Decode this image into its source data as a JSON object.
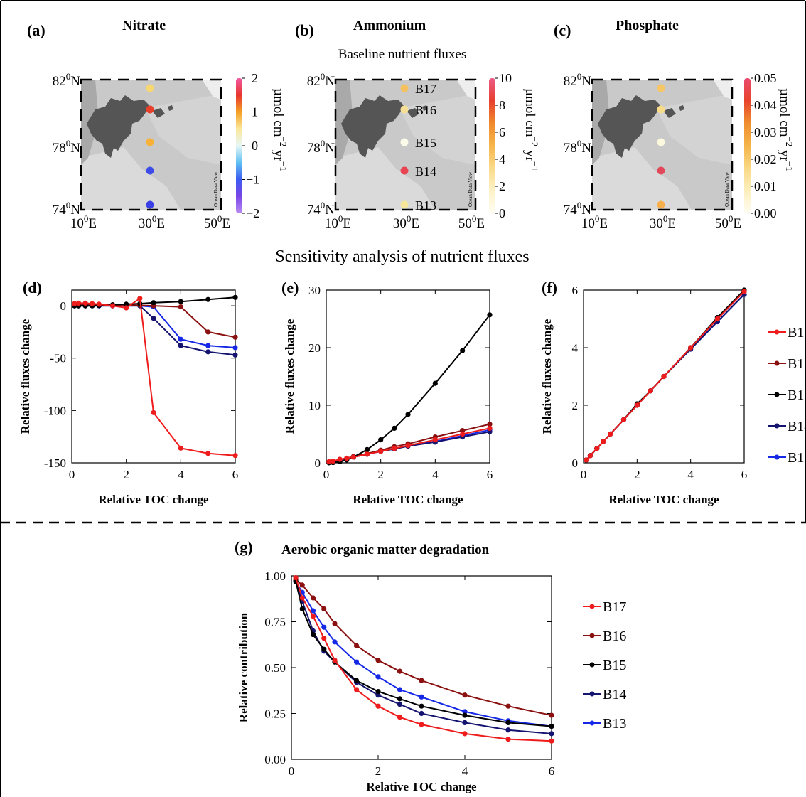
{
  "panels": {
    "a": {
      "tag": "(a)",
      "title": "Nitrate"
    },
    "b": {
      "tag": "(b)",
      "title": "Ammonium"
    },
    "c": {
      "tag": "(c)",
      "title": "Phosphate"
    },
    "d": {
      "tag": "(d)"
    },
    "e": {
      "tag": "(e)"
    },
    "f": {
      "tag": "(f)"
    },
    "g": {
      "tag": "(g)",
      "title": "Aerobic organic matter degradation"
    }
  },
  "section_titles": {
    "baseline": "Baseline nutrient fluxes",
    "sensitivity": "Sensitivity analysis of nutrient fluxes"
  },
  "maps": {
    "lat_labels": [
      "82",
      "78",
      "74"
    ],
    "lat_suffix": "N",
    "lon_labels": [
      "10",
      "30",
      "50"
    ],
    "lon_suffix": "E",
    "degree": "0",
    "watermark": "Ocean Data View",
    "colorbar_label_main": "µmol cm",
    "colorbar_label_exp1": "−2",
    "colorbar_label_mid": " yr",
    "colorbar_label_exp2": "−1",
    "station_labels": [
      "B17",
      "B16",
      "B15",
      "B14",
      "B13"
    ],
    "nitrate": {
      "ticks": [
        "2",
        "1",
        "0",
        "−1",
        "−2"
      ],
      "range": [
        -2,
        2
      ],
      "station_colors": [
        "#f6d772",
        "#e8402a",
        "#f7b038",
        "#3d4ce8",
        "#3a40e6"
      ]
    },
    "ammonium": {
      "ticks": [
        "10",
        "8",
        "6",
        "4",
        "2",
        "0"
      ],
      "range": [
        0,
        10
      ],
      "station_colors": [
        "#f5c160",
        "#f6e096",
        "#fbfbe9",
        "#e94451",
        "#f7e79a"
      ]
    },
    "phosphate": {
      "ticks": [
        "0.05",
        "0.04",
        "0.03",
        "0.02",
        "0.01",
        "0.00"
      ],
      "range": [
        0,
        0.05
      ],
      "station_colors": [
        "#f7c765",
        "#f7da8a",
        "#fbf8de",
        "#e2485a",
        "#f5b04c"
      ]
    }
  },
  "legend": {
    "stations": [
      "B17",
      "B16",
      "B15",
      "B14",
      "B13"
    ],
    "colors": [
      "#ee1c1c",
      "#8b1010",
      "#000000",
      "#141470",
      "#1428e6"
    ]
  },
  "chart_data": [
    {
      "id": "d",
      "type": "line",
      "xlabel": "Relative TOC change",
      "ylabel": "Relative fluxes change",
      "xlim": [
        0,
        6
      ],
      "ylim": [
        -150,
        15
      ],
      "xticks": [
        0,
        2,
        4,
        6
      ],
      "yticks": [
        -150,
        -100,
        -50,
        0
      ],
      "x": [
        0.1,
        0.25,
        0.5,
        0.75,
        1,
        1.5,
        2,
        2.5,
        3,
        4,
        5,
        6
      ],
      "series": [
        {
          "name": "B17",
          "values": [
            2,
            2.5,
            2.5,
            2,
            1.5,
            0,
            -2,
            7,
            -102,
            -136,
            -141,
            -143
          ]
        },
        {
          "name": "B16",
          "values": [
            1,
            1,
            1,
            0.5,
            0.5,
            0.5,
            0.5,
            0.5,
            0,
            -1,
            -25,
            -30
          ]
        },
        {
          "name": "B15",
          "values": [
            0,
            0,
            0,
            0,
            0.5,
            1,
            1.5,
            2,
            3,
            4,
            6,
            8
          ]
        },
        {
          "name": "B14",
          "values": [
            0,
            0,
            0,
            0,
            0,
            0,
            0,
            0,
            -12,
            -38,
            -44,
            -47
          ]
        },
        {
          "name": "B13",
          "values": [
            0,
            0,
            0,
            0,
            0,
            0,
            0,
            0,
            -1,
            -32,
            -38,
            -40
          ]
        }
      ]
    },
    {
      "id": "e",
      "type": "line",
      "xlabel": "Relative TOC change",
      "ylabel": "Relative fluxes change",
      "xlim": [
        0,
        6
      ],
      "ylim": [
        0,
        30
      ],
      "xticks": [
        0,
        2,
        4,
        6
      ],
      "yticks": [
        0,
        10,
        20,
        30
      ],
      "x": [
        0.1,
        0.25,
        0.5,
        0.75,
        1,
        1.5,
        2,
        2.5,
        3,
        4,
        5,
        6
      ],
      "series": [
        {
          "name": "B17",
          "values": [
            0.2,
            0.3,
            0.6,
            0.8,
            1.0,
            1.5,
            2.0,
            2.5,
            3.0,
            4.0,
            5.0,
            6.0
          ]
        },
        {
          "name": "B16",
          "values": [
            0.2,
            0.3,
            0.6,
            0.8,
            1.1,
            1.6,
            2.2,
            2.8,
            3.3,
            4.5,
            5.6,
            6.7
          ]
        },
        {
          "name": "B15",
          "values": [
            0.02,
            0.05,
            0.2,
            0.5,
            1.0,
            2.3,
            4.0,
            6.0,
            8.4,
            13.8,
            19.5,
            25.7
          ]
        },
        {
          "name": "B14",
          "values": [
            0.1,
            0.25,
            0.5,
            0.75,
            1.0,
            1.5,
            2.0,
            2.4,
            2.9,
            3.6,
            4.5,
            5.4
          ]
        },
        {
          "name": "B13",
          "values": [
            0.1,
            0.25,
            0.5,
            0.75,
            1.0,
            1.5,
            2.0,
            2.5,
            2.9,
            3.7,
            4.7,
            5.7
          ]
        }
      ]
    },
    {
      "id": "f",
      "type": "line",
      "xlabel": "Relative TOC change",
      "ylabel": "Relative fluxes change",
      "xlim": [
        0,
        6
      ],
      "ylim": [
        0,
        6
      ],
      "xticks": [
        0,
        2,
        4,
        6
      ],
      "yticks": [
        0,
        2,
        4,
        6
      ],
      "x": [
        0.1,
        0.25,
        0.5,
        0.75,
        1,
        1.5,
        2,
        2.5,
        3,
        4,
        5,
        6
      ],
      "series": [
        {
          "name": "B17",
          "values": [
            0.1,
            0.25,
            0.5,
            0.75,
            1.0,
            1.5,
            2.0,
            2.5,
            3.0,
            4.0,
            5.0,
            5.95
          ]
        },
        {
          "name": "B16",
          "values": [
            0.1,
            0.25,
            0.5,
            0.75,
            1.0,
            1.5,
            2.0,
            2.5,
            3.0,
            4.0,
            5.0,
            5.95
          ]
        },
        {
          "name": "B15",
          "values": [
            0.1,
            0.25,
            0.5,
            0.75,
            1.0,
            1.5,
            2.05,
            2.5,
            3.0,
            4.0,
            5.05,
            6.0
          ]
        },
        {
          "name": "B14",
          "values": [
            0.1,
            0.25,
            0.5,
            0.75,
            1.0,
            1.5,
            2.0,
            2.5,
            3.0,
            3.95,
            4.9,
            5.85
          ]
        },
        {
          "name": "B13",
          "values": [
            0.1,
            0.25,
            0.5,
            0.75,
            1.0,
            1.5,
            2.0,
            2.5,
            3.0,
            3.95,
            4.9,
            5.85
          ]
        }
      ]
    },
    {
      "id": "g",
      "type": "line",
      "xlabel": "Relative TOC change",
      "ylabel": "Relative contribution",
      "xlim": [
        0,
        6
      ],
      "ylim": [
        0,
        1
      ],
      "xticks": [
        0,
        2,
        4,
        6
      ],
      "yticks": [
        0,
        0.25,
        0.5,
        0.75,
        1.0
      ],
      "ytick_labels": [
        "0.00",
        "0.25",
        "0.50",
        "0.75",
        "1.00"
      ],
      "x": [
        0.1,
        0.25,
        0.5,
        0.75,
        1,
        1.5,
        2,
        2.5,
        3,
        4,
        5,
        6
      ],
      "series": [
        {
          "name": "B17",
          "values": [
            0.99,
            0.88,
            0.78,
            0.66,
            0.54,
            0.38,
            0.29,
            0.23,
            0.19,
            0.14,
            0.11,
            0.1
          ]
        },
        {
          "name": "B16",
          "values": [
            0.98,
            0.95,
            0.88,
            0.82,
            0.74,
            0.62,
            0.54,
            0.48,
            0.43,
            0.35,
            0.29,
            0.24
          ]
        },
        {
          "name": "B15",
          "values": [
            0.97,
            0.82,
            0.68,
            0.6,
            0.53,
            0.43,
            0.37,
            0.33,
            0.29,
            0.24,
            0.2,
            0.18
          ]
        },
        {
          "name": "B14",
          "values": [
            0.97,
            0.86,
            0.7,
            0.59,
            0.53,
            0.42,
            0.35,
            0.3,
            0.25,
            0.2,
            0.16,
            0.14
          ]
        },
        {
          "name": "B13",
          "values": [
            0.97,
            0.91,
            0.81,
            0.72,
            0.64,
            0.53,
            0.45,
            0.38,
            0.34,
            0.26,
            0.21,
            0.18
          ]
        }
      ]
    }
  ]
}
